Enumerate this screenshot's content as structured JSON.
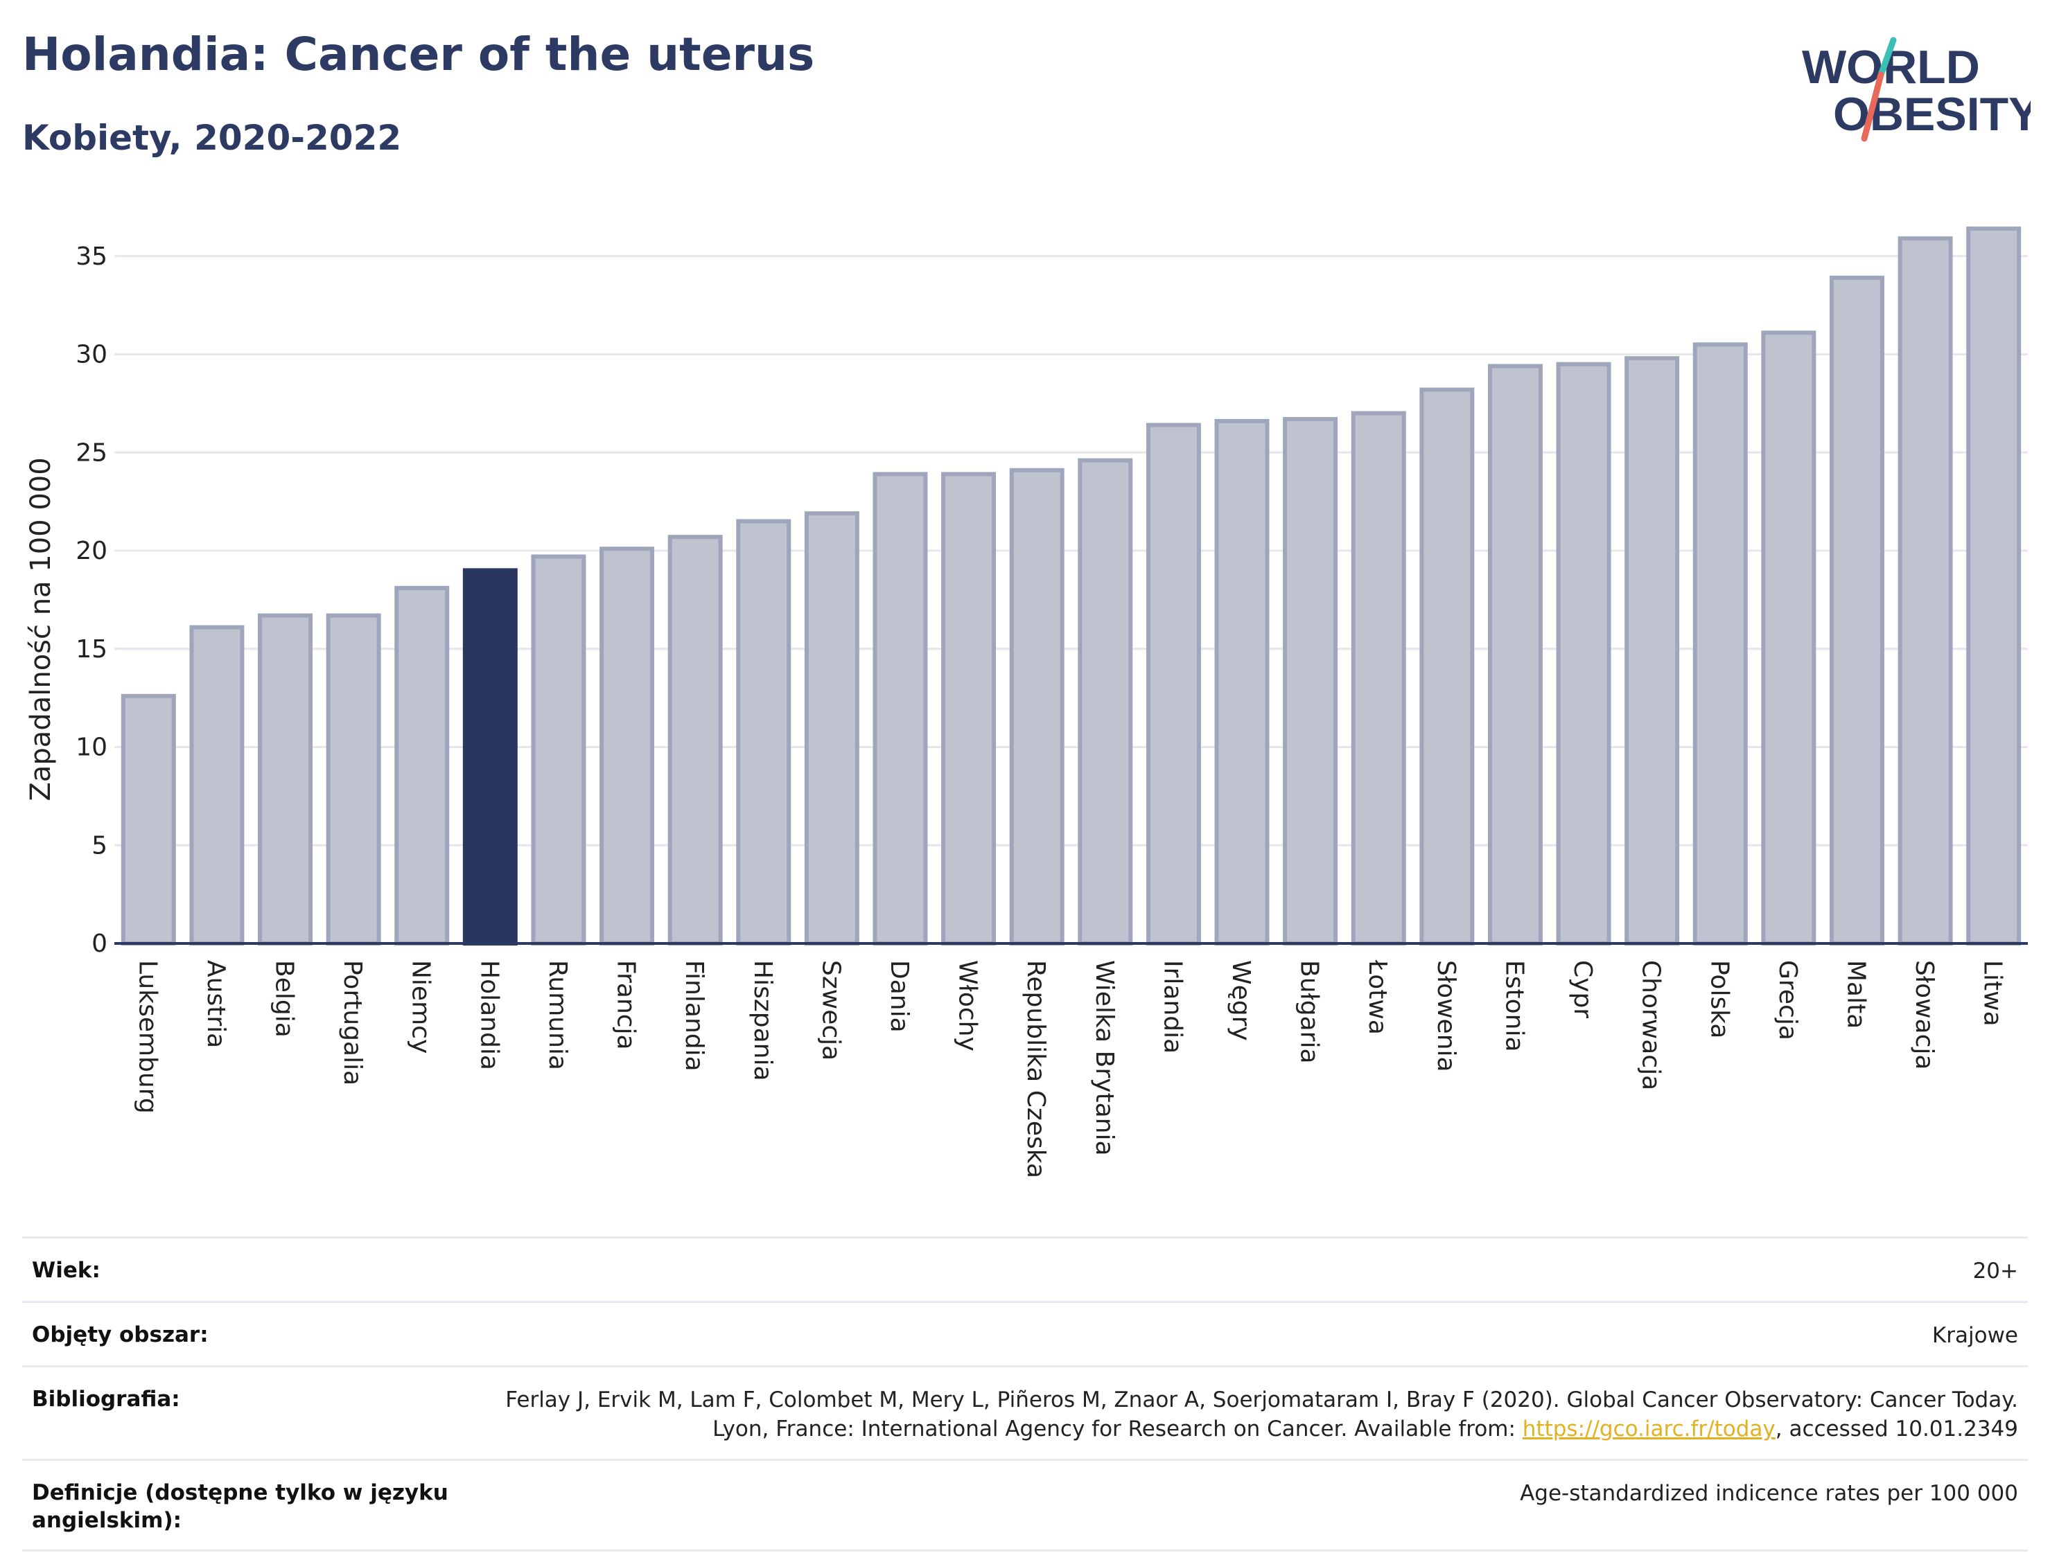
{
  "header": {
    "title": "Holandia: Cancer of the uterus",
    "subtitle": "Kobiety, 2020-2022"
  },
  "logo": {
    "line1": "WORLD",
    "line2": "OBESITY",
    "colors": {
      "text": "#2d3a63",
      "slash_top": "#3bbfb5",
      "slash_bottom": "#e8685a"
    }
  },
  "colors": {
    "bar": "#bfc3d0",
    "bar_border": "#9fa5ba",
    "highlight": "#2b3660",
    "grid": "#e6e6ec",
    "axis": "#2d3a63"
  },
  "chart_data": {
    "type": "bar",
    "title": "Holandia: Cancer of the uterus",
    "subtitle": "Kobiety, 2020-2022",
    "xlabel": "",
    "ylabel": "Zapadalność na 100 000",
    "ylim": [
      0,
      37
    ],
    "yticks": [
      0,
      5,
      10,
      15,
      20,
      25,
      30,
      35
    ],
    "grid": true,
    "highlight": "Holandia",
    "categories": [
      "Luksemburg",
      "Austria",
      "Belgia",
      "Portugalia",
      "Niemcy",
      "Holandia",
      "Rumunia",
      "Francja",
      "Finlandia",
      "Hiszpania",
      "Szwecja",
      "Dania",
      "Włochy",
      "Republika Czeska",
      "Wielka Brytania",
      "Irlandia",
      "Węgry",
      "Bułgaria",
      "Łotwa",
      "Słowenia",
      "Estonia",
      "Cypr",
      "Chorwacja",
      "Polska",
      "Grecja",
      "Malta",
      "Słowacja",
      "Litwa"
    ],
    "values": [
      12.6,
      16.1,
      16.7,
      16.7,
      18.1,
      19.0,
      19.7,
      20.1,
      20.7,
      21.5,
      21.9,
      23.9,
      23.9,
      24.1,
      24.6,
      26.4,
      26.6,
      26.7,
      27.0,
      28.2,
      29.4,
      29.5,
      29.8,
      30.5,
      31.1,
      33.9,
      35.9,
      36.4
    ]
  },
  "metadata": {
    "rows": [
      {
        "label": "Wiek:",
        "value": "20+"
      },
      {
        "label": "Objęty obszar:",
        "value": "Krajowe"
      },
      {
        "label": "Bibliografia:",
        "value_before": "Ferlay J, Ervik M, Lam F, Colombet M, Mery L, Piñeros M, Znaor A, Soerjomataram I, Bray F (2020). Global Cancer Observatory: Cancer Today. Lyon, France: International Agency for Research on Cancer. Available from: ",
        "link_text": "https://gco.iarc.fr/today",
        "value_after": ", accessed 10.01.2349"
      },
      {
        "label": "Definicje (dostępne tylko w języku angielskim):",
        "value": "Age-standardized indicence rates per 100 000"
      }
    ]
  }
}
